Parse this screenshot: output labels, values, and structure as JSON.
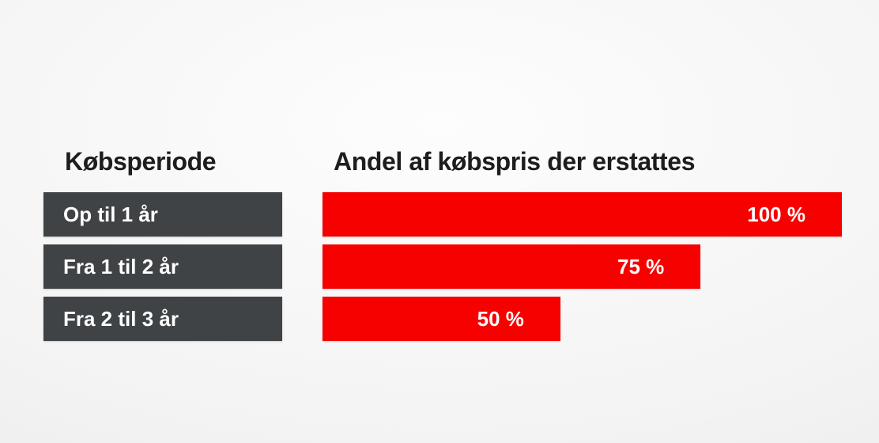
{
  "headers": {
    "left": "Købsperiode",
    "right": "Andel af købspris der erstattes"
  },
  "colors": {
    "bar_red": "#f60000",
    "category_box_dark": "#3f4345",
    "heading_text": "#1d1d1b",
    "bar_label_text": "#ffffff",
    "background_center": "#fdfdfd",
    "background_edge": "#e7e7e7"
  },
  "chart_data": {
    "type": "bar",
    "orientation": "horizontal",
    "title": "Andel af købspris der erstattes",
    "xlabel": "Andel af købspris der erstattes",
    "ylabel": "Købsperiode",
    "legend": false,
    "grid": false,
    "value_range": [
      0,
      100
    ],
    "categories": [
      "Op til 1 år",
      "Fra 1 til 2 år",
      "Fra 2 til 3 år"
    ],
    "values": [
      100,
      75,
      50
    ],
    "value_labels": [
      "100 %",
      "75 %",
      "50 %"
    ],
    "rows": [
      {
        "category": "Op til 1 år",
        "value": 100,
        "value_label": "100 %",
        "width_pct": 100
      },
      {
        "category": "Fra 1 til 2 år",
        "value": 75,
        "value_label": "75 %",
        "width_pct": 72.8
      },
      {
        "category": "Fra 2 til 3 år",
        "value": 50,
        "value_label": "50 %",
        "width_pct": 45.8
      }
    ]
  }
}
